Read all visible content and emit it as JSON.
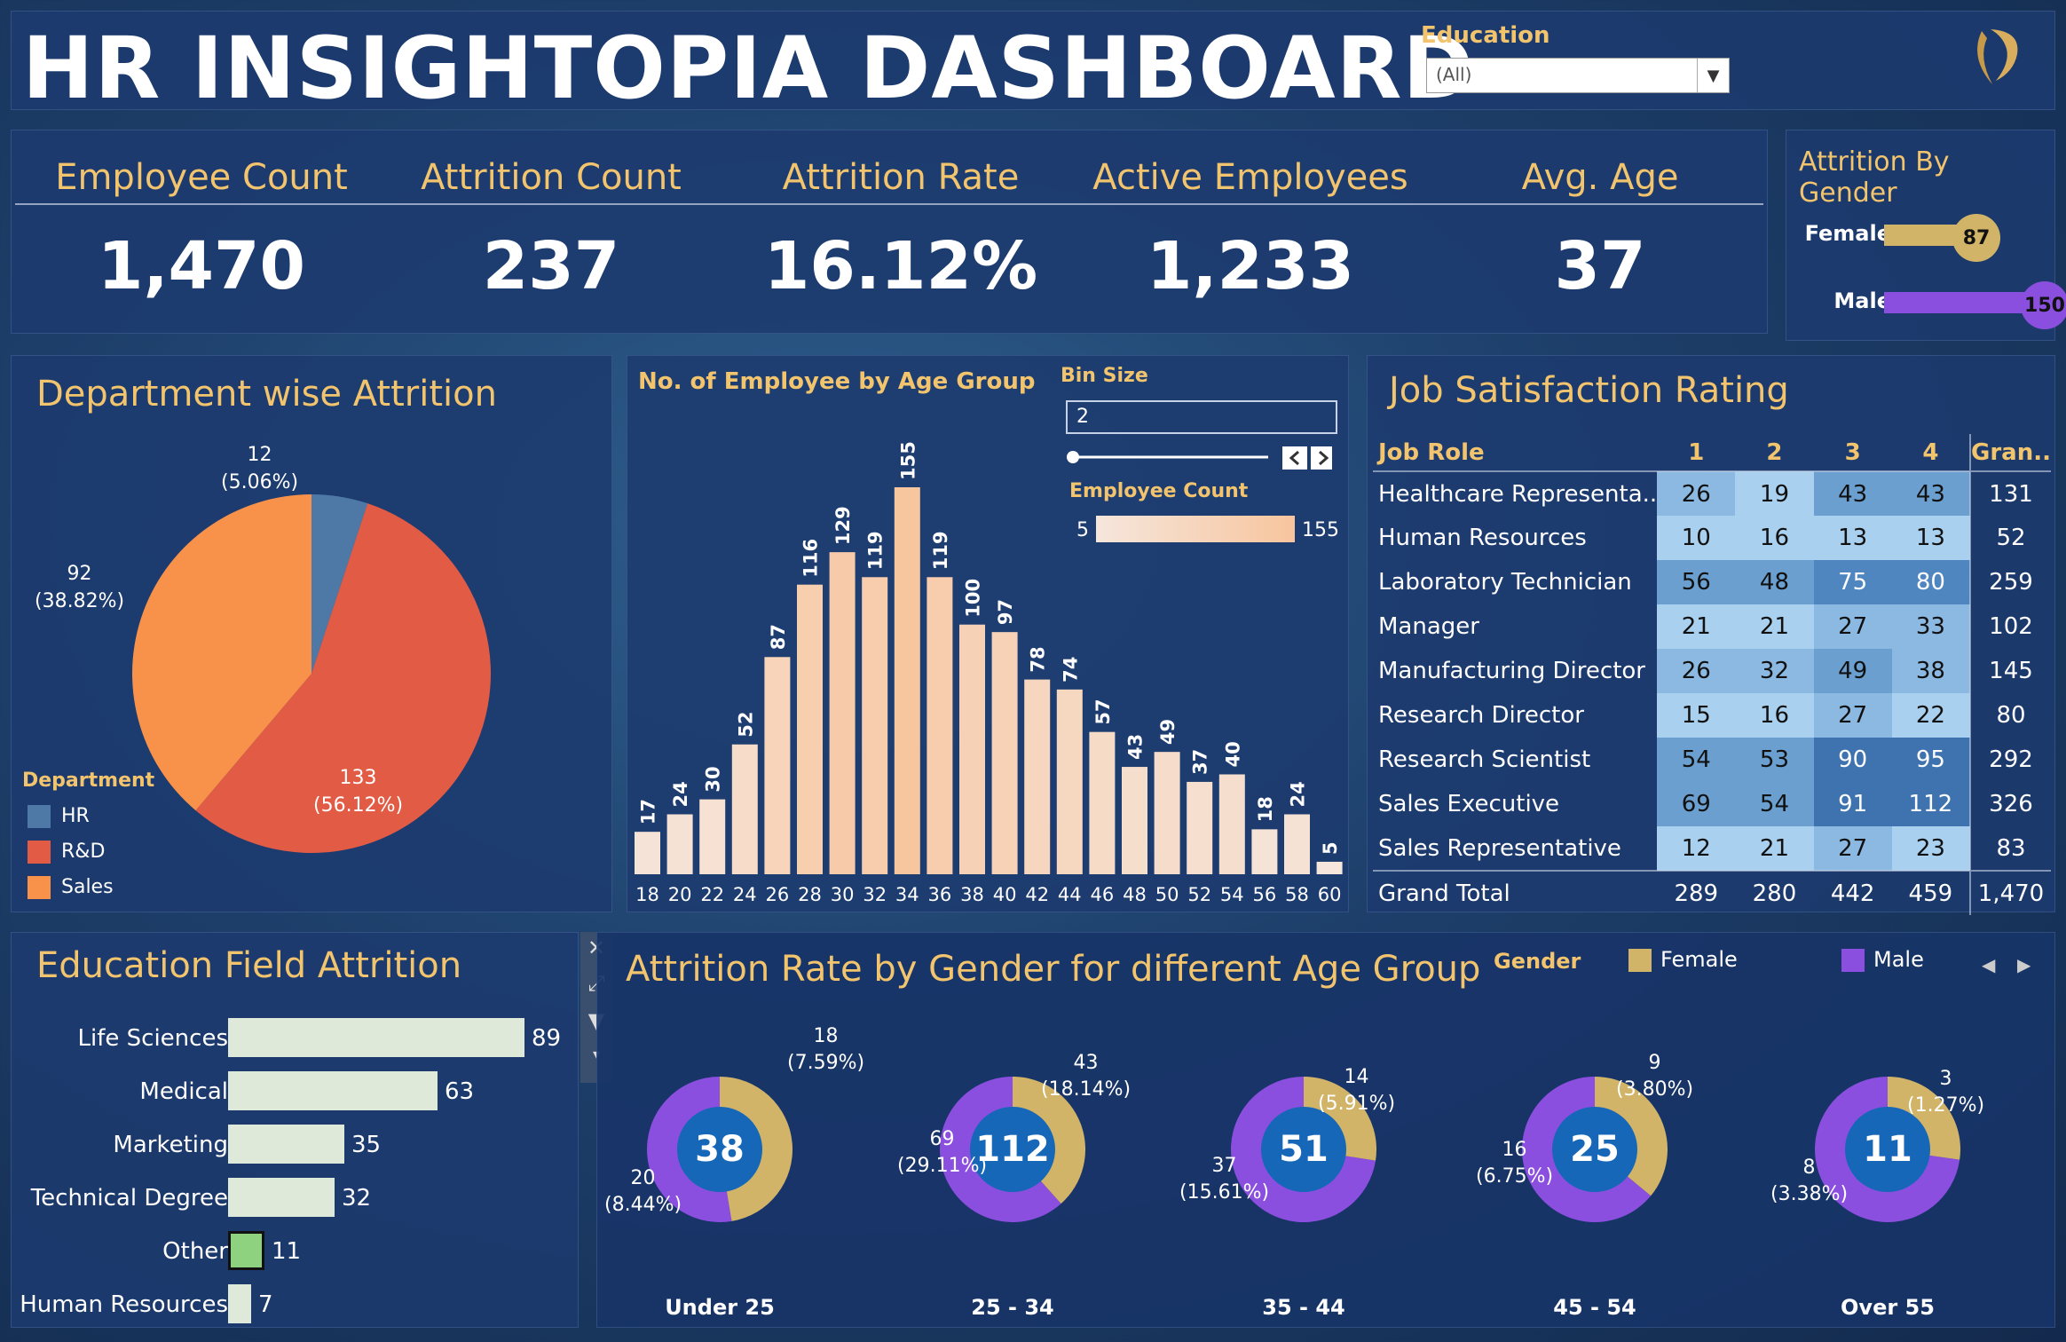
{
  "header": {
    "title": "HR  INSIGHTOPIA DASHBOARD",
    "education_label": "Education",
    "education_value": "(All)"
  },
  "kpis": [
    {
      "label": "Employee Count",
      "value": "1,470"
    },
    {
      "label": "Attrition Count",
      "value": "237"
    },
    {
      "label": "Attrition Rate",
      "value": "16.12%"
    },
    {
      "label": "Active Employees",
      "value": "1,233"
    },
    {
      "label": "Avg. Age",
      "value": "37"
    }
  ],
  "gender_attrition": {
    "title": "Attrition By Gender",
    "rows": [
      {
        "label": "Female",
        "value": "87"
      },
      {
        "label": "Male",
        "value": "150"
      }
    ]
  },
  "department": {
    "title": "Department wise Attrition",
    "legend_title": "Department",
    "items": [
      {
        "name": "HR",
        "count": "12",
        "pct": "(5.06%)",
        "color": "#4e79a7"
      },
      {
        "name": "R&D",
        "count": "133",
        "pct": "(56.12%)",
        "color": "#e15b45"
      },
      {
        "name": "Sales",
        "count": "92",
        "pct": "(38.82%)",
        "color": "#f8924a"
      }
    ]
  },
  "age_hist": {
    "title": "No. of Employee by Age Group",
    "bin_label": "Bin Size",
    "bin_value": "2",
    "scale_label": "Employee Count",
    "scale_min": "5",
    "scale_max": "155"
  },
  "job_satisfaction": {
    "title": "Job Satisfaction Rating",
    "headers": [
      "Job Role",
      "1",
      "2",
      "3",
      "4",
      "Gran.."
    ],
    "rows": [
      [
        "Healthcare Representa..",
        "26",
        "19",
        "43",
        "43",
        "131"
      ],
      [
        "Human Resources",
        "10",
        "16",
        "13",
        "13",
        "52"
      ],
      [
        "Laboratory Technician",
        "56",
        "48",
        "75",
        "80",
        "259"
      ],
      [
        "Manager",
        "21",
        "21",
        "27",
        "33",
        "102"
      ],
      [
        "Manufacturing Director",
        "26",
        "32",
        "49",
        "38",
        "145"
      ],
      [
        "Research Director",
        "15",
        "16",
        "27",
        "22",
        "80"
      ],
      [
        "Research Scientist",
        "54",
        "53",
        "90",
        "95",
        "292"
      ],
      [
        "Sales Executive",
        "69",
        "54",
        "91",
        "112",
        "326"
      ],
      [
        "Sales Representative",
        "12",
        "21",
        "27",
        "23",
        "83"
      ]
    ],
    "total": [
      "Grand Total",
      "289",
      "280",
      "442",
      "459",
      "1,470"
    ]
  },
  "education_field": {
    "title": "Education Field Attrition",
    "rows": [
      {
        "label": "Life Sciences",
        "value": "89"
      },
      {
        "label": "Medical",
        "value": "63"
      },
      {
        "label": "Marketing",
        "value": "35"
      },
      {
        "label": "Technical Degree",
        "value": "32"
      },
      {
        "label": "Other",
        "value": "11"
      },
      {
        "label": "Human Resources",
        "value": "7"
      }
    ]
  },
  "age_gender": {
    "title": "Attrition Rate by Gender for different Age Group",
    "legend_title": "Gender",
    "legend": [
      {
        "name": "Female",
        "color": "#d2b469"
      },
      {
        "name": "Male",
        "color": "#8b4fe0"
      }
    ],
    "groups": [
      {
        "name": "Under 25",
        "total": "38",
        "female": "18",
        "female_pct": "(7.59%)",
        "male": "20",
        "male_pct": "(8.44%)"
      },
      {
        "name": "25 - 34",
        "total": "112",
        "female": "43",
        "female_pct": "(18.14%)",
        "male": "69",
        "male_pct": "(29.11%)"
      },
      {
        "name": "35 - 44",
        "total": "51",
        "female": "14",
        "female_pct": "(5.91%)",
        "male": "37",
        "male_pct": "(15.61%)"
      },
      {
        "name": "45 - 54",
        "total": "25",
        "female": "9",
        "female_pct": "(3.80%)",
        "male": "16",
        "male_pct": "(6.75%)"
      },
      {
        "name": "Over 55",
        "total": "11",
        "female": "3",
        "female_pct": "(1.27%)",
        "male": "8",
        "male_pct": "(3.38%)"
      }
    ]
  },
  "chart_data": [
    {
      "type": "pie",
      "title": "Department wise Attrition",
      "categories": [
        "HR",
        "R&D",
        "Sales"
      ],
      "values": [
        12,
        133,
        92
      ]
    },
    {
      "type": "bar",
      "title": "No. of Employee by Age Group",
      "categories": [
        "18",
        "20",
        "22",
        "24",
        "26",
        "28",
        "30",
        "32",
        "34",
        "36",
        "38",
        "40",
        "42",
        "44",
        "46",
        "48",
        "50",
        "52",
        "54",
        "56",
        "58",
        "60"
      ],
      "values": [
        17,
        24,
        30,
        52,
        87,
        116,
        129,
        119,
        155,
        119,
        100,
        97,
        78,
        74,
        57,
        43,
        49,
        37,
        40,
        18,
        24,
        5
      ],
      "ylim": [
        0,
        155
      ]
    },
    {
      "type": "bar",
      "title": "Education Field Attrition",
      "categories": [
        "Life Sciences",
        "Medical",
        "Marketing",
        "Technical Degree",
        "Other",
        "Human Resources"
      ],
      "values": [
        89,
        63,
        35,
        32,
        11,
        7
      ]
    },
    {
      "type": "pie",
      "title": "Attrition Rate by Gender for different Age Group",
      "categories": [
        "Under 25",
        "25 - 34",
        "35 - 44",
        "45 - 54",
        "Over 55"
      ],
      "series": [
        {
          "name": "Female",
          "values": [
            18,
            43,
            14,
            9,
            3
          ]
        },
        {
          "name": "Male",
          "values": [
            20,
            69,
            37,
            16,
            8
          ]
        }
      ]
    },
    {
      "type": "bar",
      "title": "Attrition By Gender",
      "categories": [
        "Female",
        "Male"
      ],
      "values": [
        87,
        150
      ]
    }
  ]
}
